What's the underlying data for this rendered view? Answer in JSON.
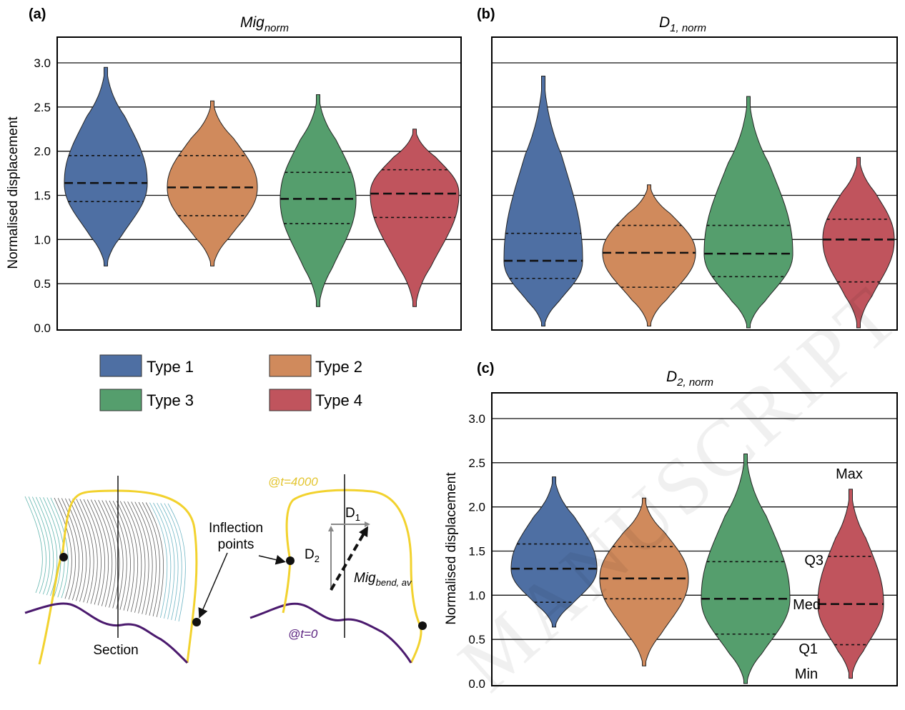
{
  "panels": [
    {
      "tag": "(a)",
      "title_main": "Mig",
      "title_sub": "norm",
      "ylabel": "Normalised displacement",
      "show_yticks": true,
      "ylim": [
        0,
        3.0
      ],
      "yticks": [
        "0.0",
        "0.5",
        "1.0",
        "1.5",
        "2.0",
        "2.5",
        "3.0"
      ]
    },
    {
      "tag": "(b)",
      "title_main": "D",
      "title_sub": "1, norm",
      "ylabel": "",
      "show_yticks": false,
      "ylim": [
        0,
        3.0
      ],
      "yticks": []
    },
    {
      "tag": "(c)",
      "title_main": "D",
      "title_sub": "2, norm",
      "ylabel": "Normalised displacement",
      "show_yticks": true,
      "ylim": [
        0,
        3.0
      ],
      "yticks": [
        "0.0",
        "0.5",
        "1.0",
        "1.5",
        "2.0",
        "2.5",
        "3.0"
      ]
    }
  ],
  "legend": [
    {
      "label": "Type 1",
      "color": "#4e6fa3"
    },
    {
      "label": "Type 2",
      "color": "#d08a5c"
    },
    {
      "label": "Type 3",
      "color": "#559e6d"
    },
    {
      "label": "Type 4",
      "color": "#c0545d"
    }
  ],
  "chart_data": [
    {
      "type": "violin",
      "panel": "(a)",
      "ylim": [
        0,
        3.0
      ],
      "series": [
        {
          "name": "Type 1",
          "min": 0.7,
          "q1": 1.43,
          "median": 1.64,
          "q3": 1.95,
          "max": 2.95
        },
        {
          "name": "Type 2",
          "min": 0.7,
          "q1": 1.27,
          "median": 1.59,
          "q3": 1.95,
          "max": 2.57
        },
        {
          "name": "Type 3",
          "min": 0.24,
          "q1": 1.18,
          "median": 1.46,
          "q3": 1.76,
          "max": 2.64
        },
        {
          "name": "Type 4",
          "min": 0.24,
          "q1": 1.25,
          "median": 1.52,
          "q3": 1.79,
          "max": 2.25
        }
      ]
    },
    {
      "type": "violin",
      "panel": "(b)",
      "ylim": [
        0,
        3.0
      ],
      "series": [
        {
          "name": "Type 1",
          "min": 0.02,
          "q1": 0.56,
          "median": 0.76,
          "q3": 1.07,
          "max": 2.85
        },
        {
          "name": "Type 2",
          "min": 0.02,
          "q1": 0.46,
          "median": 0.85,
          "q3": 1.16,
          "max": 1.62
        },
        {
          "name": "Type 3",
          "min": 0.0,
          "q1": 0.58,
          "median": 0.84,
          "q3": 1.16,
          "max": 2.62
        },
        {
          "name": "Type 4",
          "min": 0.0,
          "q1": 0.52,
          "median": 1.0,
          "q3": 1.23,
          "max": 1.93
        }
      ]
    },
    {
      "type": "violin",
      "panel": "(c)",
      "ylim": [
        0,
        3.0
      ],
      "series": [
        {
          "name": "Type 1",
          "min": 0.64,
          "q1": 0.92,
          "median": 1.3,
          "q3": 1.58,
          "max": 2.34
        },
        {
          "name": "Type 2",
          "min": 0.2,
          "q1": 0.96,
          "median": 1.19,
          "q3": 1.55,
          "max": 2.1
        },
        {
          "name": "Type 3",
          "min": 0.0,
          "q1": 0.56,
          "median": 0.96,
          "q3": 1.38,
          "max": 2.6
        },
        {
          "name": "Type 4",
          "min": 0.06,
          "q1": 0.44,
          "median": 0.9,
          "q3": 1.44,
          "max": 2.2
        }
      ]
    }
  ],
  "stat_labels": {
    "max": "Max",
    "q3": "Q3",
    "med": "Med",
    "q1": "Q1",
    "min": "Min"
  },
  "sketch": {
    "section_label": "Section",
    "inflection_line1": "Inflection",
    "inflection_line2": "points",
    "t_end_label": "@t=4000",
    "t_start_label": "@t=0",
    "d1_main": "D",
    "d1_sub": "1",
    "d2_main": "D",
    "d2_sub": "2",
    "mig_main": "Mig",
    "mig_sub": "bend, av"
  },
  "watermark": "MANUSCRIPT"
}
